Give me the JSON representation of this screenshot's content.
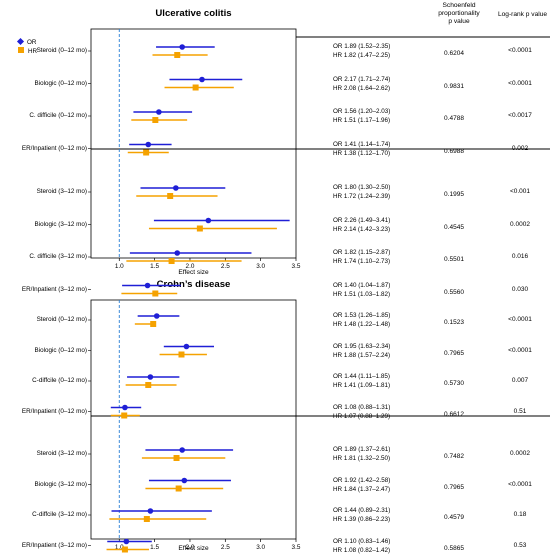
{
  "headers": {
    "schoenfeld": [
      "Schoenfeld",
      "proportionality",
      "p value"
    ],
    "logrank": "Log-rank p value"
  },
  "legend": {
    "or_label": "OR",
    "hr_label": "HR",
    "or_color": "#1f1fd6",
    "hr_color": "#f5a200"
  },
  "chart_data": [
    {
      "type": "forest",
      "title": "Ulcerative colitis",
      "xlabel": "Effect size",
      "xlim": [
        0.6,
        3.5
      ],
      "xticks": [
        "1.0",
        "1.5",
        "2.0",
        "2.5",
        "3.0",
        "3.5"
      ],
      "reference_line": 1.0,
      "rows": [
        {
          "label": "Steroid (0–12 mo)",
          "or": [
            1.89,
            1.52,
            2.35
          ],
          "hr": [
            1.82,
            1.47,
            2.25
          ],
          "or_text": "OR 1.89 (1.52–2.35)",
          "hr_text": "HR 1.82 (1.47–2.25)",
          "schoenfeld": "0.6204",
          "logrank": "<0.0001"
        },
        {
          "label": "Biologic (0–12 mo)",
          "or": [
            2.17,
            1.71,
            2.74
          ],
          "hr": [
            2.08,
            1.64,
            2.62
          ],
          "or_text": "OR 2.17 (1.71–2.74)",
          "hr_text": "HR 2.08 (1.64–2.62)",
          "schoenfeld": "0.9831",
          "logrank": "<0.0001"
        },
        {
          "label": "C. difficile (0–12 mo)",
          "or": [
            1.56,
            1.2,
            2.03
          ],
          "hr": [
            1.51,
            1.17,
            1.96
          ],
          "or_text": "OR 1.56 (1.20–2.03)",
          "hr_text": "HR 1.51 (1.17–1.96)",
          "schoenfeld": "0.4788",
          "logrank": "<0.0017"
        },
        {
          "label": "ER/Inpatient (0–12 mo)",
          "or": [
            1.41,
            1.14,
            1.74
          ],
          "hr": [
            1.38,
            1.12,
            1.7
          ],
          "or_text": "OR 1.41 (1.14–1.74)",
          "hr_text": "HR 1.38 (1.12–1.70)",
          "schoenfeld": "0.6988",
          "logrank": "0.002"
        },
        {
          "label": "Steroid (3–12 mo)",
          "or": [
            1.8,
            1.3,
            2.5
          ],
          "hr": [
            1.72,
            1.24,
            2.39
          ],
          "or_text": "OR 1.80 (1.30–2.50)",
          "hr_text": "HR 1.72 (1.24–2.39)",
          "schoenfeld": "0.1995",
          "logrank": "<0.001"
        },
        {
          "label": "Biologic (3–12 mo)",
          "or": [
            2.26,
            1.49,
            3.41
          ],
          "hr": [
            2.14,
            1.42,
            3.23
          ],
          "or_text": "OR 2.26 (1.49–3.41)",
          "hr_text": "HR 2.14 (1.42–3.23)",
          "schoenfeld": "0.4545",
          "logrank": "0.0002"
        },
        {
          "label": "C. difficile (3–12 mo)",
          "or": [
            1.82,
            1.15,
            2.87
          ],
          "hr": [
            1.74,
            1.1,
            2.73
          ],
          "or_text": "OR 1.82 (1.15–2.87)",
          "hr_text": "HR 1.74 (1.10–2.73)",
          "schoenfeld": "0.5501",
          "logrank": "0.016"
        },
        {
          "label": "ER/Inpatient (3–12 mo)",
          "or": [
            1.4,
            1.04,
            1.87
          ],
          "hr": [
            1.51,
            1.03,
            1.82
          ],
          "or_text": "OR 1.40 (1.04–1.87)",
          "hr_text": "HR 1.51 (1.03–1.82)",
          "schoenfeld": "0.5560",
          "logrank": "0.030"
        }
      ]
    },
    {
      "type": "forest",
      "title": "Crohn’s disease",
      "xlabel": "Effect size",
      "xlim": [
        0.6,
        3.5
      ],
      "xticks": [
        "1.0",
        "1.5",
        "2.0",
        "2.5",
        "3.0",
        "3.5"
      ],
      "reference_line": 1.0,
      "rows": [
        {
          "label": "Steroid (0–12 mo)",
          "or": [
            1.53,
            1.26,
            1.85
          ],
          "hr": [
            1.48,
            1.22,
            1.48
          ],
          "or_text": "OR 1.53 (1.26–1.85)",
          "hr_text": "HR 1.48 (1.22–1.48)",
          "schoenfeld": "0.1523",
          "logrank": "<0.0001"
        },
        {
          "label": "Biologic (0–12 mo)",
          "or": [
            1.95,
            1.63,
            2.34
          ],
          "hr": [
            1.88,
            1.57,
            2.24
          ],
          "or_text": "OR 1.95 (1.63–2.34)",
          "hr_text": "HR 1.88 (1.57–2.24)",
          "schoenfeld": "0.7965",
          "logrank": "<0.0001"
        },
        {
          "label": "C-diffcile (0–12 mo)",
          "or": [
            1.44,
            1.11,
            1.85
          ],
          "hr": [
            1.41,
            1.09,
            1.81
          ],
          "or_text": "OR 1.44 (1.11–1.85)",
          "hr_text": "HR 1.41 (1.09–1.81)",
          "schoenfeld": "0.5730",
          "logrank": "0.007"
        },
        {
          "label": "ER/Inpatient (0–12 mo)",
          "or": [
            1.08,
            0.88,
            1.31
          ],
          "hr": [
            1.07,
            0.88,
            1.29
          ],
          "or_text": "OR 1.08 (0.88–1.31)",
          "hr_text": "HR 1.07 (0.88–1.29)",
          "schoenfeld": "0.6612",
          "logrank": "0.51"
        },
        {
          "label": "Steroid (3–12 mo)",
          "or": [
            1.89,
            1.37,
            2.61
          ],
          "hr": [
            1.81,
            1.32,
            2.5
          ],
          "or_text": "OR 1.89 (1.37–2.61)",
          "hr_text": "HR 1.81 (1.32–2.50)",
          "schoenfeld": "0.7482",
          "logrank": "0.0002"
        },
        {
          "label": "Biologic (3–12 mo)",
          "or": [
            1.92,
            1.42,
            2.58
          ],
          "hr": [
            1.84,
            1.37,
            2.47
          ],
          "or_text": "OR 1.92 (1.42–2.58)",
          "hr_text": "HR 1.84 (1.37–2.47)",
          "schoenfeld": "0.7965",
          "logrank": "<0.0001"
        },
        {
          "label": "C-diffcile (3–12 mo)",
          "or": [
            1.44,
            0.89,
            2.31
          ],
          "hr": [
            1.39,
            0.86,
            2.23
          ],
          "or_text": "OR 1.44 (0.89–2.31)",
          "hr_text": "HR 1.39 (0.86–2.23)",
          "schoenfeld": "0.4579",
          "logrank": "0.18"
        },
        {
          "label": "ER/Inpatient (3–12 mo)",
          "or": [
            1.1,
            0.83,
            1.46
          ],
          "hr": [
            1.08,
            0.82,
            1.42
          ],
          "or_text": "OR 1.10 (0.83–1.46)",
          "hr_text": "HR 1.08 (0.82–1.42)",
          "schoenfeld": "0.5865",
          "logrank": "0.53"
        }
      ]
    }
  ]
}
